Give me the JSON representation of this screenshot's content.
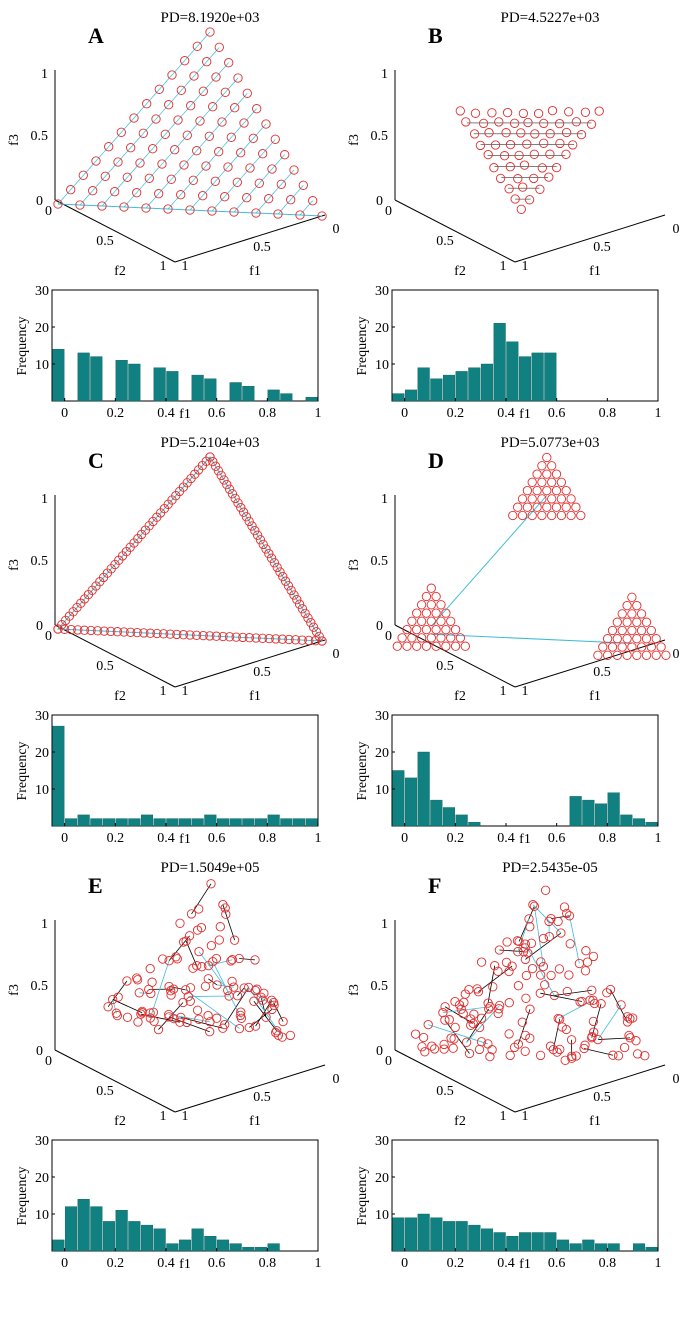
{
  "panel_colors": {
    "marker": "#e03030",
    "line": "#40bcd8",
    "bar": "#118080",
    "link": "#000000"
  },
  "chart_data": [
    {
      "id": "A",
      "type": "scatter3d+histogram",
      "letter": "A",
      "title": "PD=8.1920e+03",
      "scatter": {
        "axes": {
          "f1": "f1",
          "f2": "f2",
          "f3": "f3"
        },
        "f3_ticks": [
          "0",
          "0.5",
          "1"
        ],
        "f2_ticks": [
          "0",
          "0.5",
          "1"
        ],
        "f1_ticks": [
          "0",
          "0.5",
          "1"
        ],
        "pattern": "uniform-grid",
        "style": "lines"
      },
      "histogram": {
        "type": "bar",
        "xlabel": "f1",
        "ylabel": "Frequency",
        "xlim": [
          -0.05,
          1
        ],
        "ylim": [
          0,
          30
        ],
        "xticks": [
          "0",
          "0.2",
          "0.4",
          "0.6",
          "0.8",
          "1"
        ],
        "yticks": [
          "10",
          "20",
          "30"
        ],
        "bins": [
          -0.05,
          1
        ],
        "values": [
          14,
          0,
          13,
          12,
          0,
          11,
          10,
          0,
          9,
          8,
          0,
          7,
          6,
          0,
          5,
          4,
          0,
          3,
          2,
          0,
          1
        ]
      }
    },
    {
      "id": "B",
      "type": "scatter3d+histogram",
      "letter": "B",
      "title": "PD=4.5227e+03",
      "scatter": {
        "axes": {
          "f1": "f1",
          "f2": "f2",
          "f3": "f3"
        },
        "f3_ticks": [
          "0",
          "0.5",
          "1"
        ],
        "f2_ticks": [
          "0",
          "0.5",
          "1"
        ],
        "f1_ticks": [
          "0",
          "0.5",
          "1"
        ],
        "pattern": "center-triangle",
        "style": "lines"
      },
      "histogram": {
        "type": "bar",
        "xlabel": "f1",
        "ylabel": "Frequency",
        "xlim": [
          -0.05,
          1
        ],
        "ylim": [
          0,
          30
        ],
        "xticks": [
          "0",
          "0.2",
          "0.4",
          "0.6",
          "0.8",
          "1"
        ],
        "yticks": [
          "10",
          "20",
          "30"
        ],
        "bins": [
          -0.05,
          1
        ],
        "values": [
          2,
          3,
          9,
          6,
          7,
          8,
          9,
          10,
          21,
          16,
          12,
          13,
          13,
          0,
          0,
          0,
          0,
          0,
          0,
          0,
          0
        ]
      }
    },
    {
      "id": "C",
      "type": "scatter3d+histogram",
      "letter": "C",
      "title": "PD=5.2104e+03",
      "scatter": {
        "axes": {
          "f1": "f1",
          "f2": "f2",
          "f3": "f3"
        },
        "f3_ticks": [
          "0",
          "0.5",
          "1"
        ],
        "f2_ticks": [
          "0",
          "0.5",
          "1"
        ],
        "f1_ticks": [
          "0",
          "0.5",
          "1"
        ],
        "pattern": "boundary",
        "style": "lines"
      },
      "histogram": {
        "type": "bar",
        "xlabel": "f1",
        "ylabel": "Frequency",
        "xlim": [
          -0.05,
          1
        ],
        "ylim": [
          0,
          30
        ],
        "xticks": [
          "0",
          "0.2",
          "0.4",
          "0.6",
          "0.8",
          "1"
        ],
        "yticks": [
          "10",
          "20",
          "30"
        ],
        "bins": [
          -0.05,
          1
        ],
        "values": [
          27,
          2,
          3,
          2,
          2,
          2,
          2,
          3,
          2,
          2,
          2,
          2,
          3,
          2,
          2,
          2,
          2,
          3,
          2,
          2,
          2
        ]
      }
    },
    {
      "id": "D",
      "type": "scatter3d+histogram",
      "letter": "D",
      "title": "PD=5.0773e+03",
      "scatter": {
        "axes": {
          "f1": "f1",
          "f2": "f2",
          "f3": "f3"
        },
        "f3_ticks": [
          "0",
          "0.5",
          "1"
        ],
        "f2_ticks": [
          "0",
          "0.5",
          "1"
        ],
        "f1_ticks": [
          "0",
          "0.5",
          "1"
        ],
        "pattern": "corner-clusters",
        "style": "lines"
      },
      "histogram": {
        "type": "bar",
        "xlabel": "f1",
        "ylabel": "Frequency",
        "xlim": [
          -0.05,
          1
        ],
        "ylim": [
          0,
          30
        ],
        "xticks": [
          "0",
          "0.2",
          "0.4",
          "0.6",
          "0.8",
          "1"
        ],
        "yticks": [
          "10",
          "20",
          "30"
        ],
        "bins": [
          -0.05,
          1
        ],
        "values": [
          15,
          13,
          20,
          7,
          5,
          3,
          1,
          0,
          0,
          0,
          0,
          0,
          0,
          0,
          8,
          7,
          6,
          9,
          3,
          2,
          1
        ]
      }
    },
    {
      "id": "E",
      "type": "scatter3d+histogram",
      "letter": "E",
      "title": "PD=1.5049e+05",
      "scatter": {
        "axes": {
          "f1": "f1",
          "f2": "f2",
          "f3": "f3"
        },
        "f3_ticks": [
          "0",
          "0.5",
          "1"
        ],
        "f2_ticks": [
          "0",
          "0.5",
          "1"
        ],
        "f1_ticks": [
          "0",
          "0.5",
          "1"
        ],
        "pattern": "random-sparse",
        "style": "links"
      },
      "histogram": {
        "type": "bar",
        "xlabel": "f1",
        "ylabel": "Frequency",
        "xlim": [
          -0.05,
          1
        ],
        "ylim": [
          0,
          30
        ],
        "xticks": [
          "0",
          "0.2",
          "0.4",
          "0.6",
          "0.8",
          "1"
        ],
        "yticks": [
          "10",
          "20",
          "30"
        ],
        "bins": [
          -0.05,
          1
        ],
        "values": [
          3,
          12,
          14,
          12,
          8,
          11,
          8,
          7,
          6,
          2,
          3,
          6,
          4,
          3,
          2,
          1,
          1,
          2,
          0,
          0,
          0
        ]
      }
    },
    {
      "id": "F",
      "type": "scatter3d+histogram",
      "letter": "F",
      "title": "PD=2.5435e-05",
      "scatter": {
        "axes": {
          "f1": "f1",
          "f2": "f2",
          "f3": "f3"
        },
        "f3_ticks": [
          "0",
          "0.5",
          "1"
        ],
        "f2_ticks": [
          "0",
          "0.5",
          "1"
        ],
        "f1_ticks": [
          "0",
          "0.5",
          "1"
        ],
        "pattern": "random-dense",
        "style": "links"
      },
      "histogram": {
        "type": "bar",
        "xlabel": "f1",
        "ylabel": "Frequency",
        "xlim": [
          -0.05,
          1
        ],
        "ylim": [
          0,
          30
        ],
        "xticks": [
          "0",
          "0.2",
          "0.4",
          "0.6",
          "0.8",
          "1"
        ],
        "yticks": [
          "10",
          "20",
          "30"
        ],
        "bins": [
          -0.05,
          1
        ],
        "values": [
          9,
          9,
          10,
          9,
          8,
          8,
          7,
          6,
          5,
          4,
          5,
          5,
          5,
          3,
          2,
          3,
          2,
          2,
          0,
          2,
          1
        ]
      }
    }
  ]
}
